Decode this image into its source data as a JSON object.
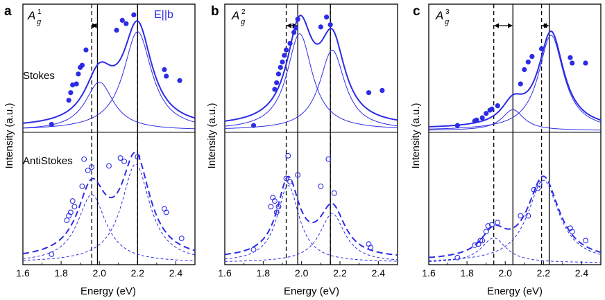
{
  "figure": {
    "ylabel": "Intensity (a.u.)",
    "xlabel": "Energy (eV)",
    "stokes_label": "Stokes",
    "antistokes_label": "AntiStokes",
    "polarization": "E||b"
  },
  "colors": {
    "curve": "#2c2ce6",
    "axis": "#000000"
  },
  "chart_data": [
    {
      "type": "scatter",
      "panel": "a",
      "mode": {
        "base": "A",
        "sub": "g",
        "sup": "1"
      },
      "xlim": [
        1.6,
        2.5
      ],
      "xticks": [
        "1.6",
        "1.8",
        "2.0",
        "2.2",
        "2.4"
      ],
      "xtick_values": [
        1.6,
        1.8,
        2.0,
        2.2,
        2.4
      ],
      "stokes": {
        "ylim": [
          0,
          1.12
        ],
        "points": [
          [
            1.75,
            0.06
          ],
          [
            1.84,
            0.28
          ],
          [
            1.85,
            0.35
          ],
          [
            1.86,
            0.42
          ],
          [
            1.88,
            0.43
          ],
          [
            1.89,
            0.52
          ],
          [
            1.9,
            0.58
          ],
          [
            1.91,
            0.6
          ],
          [
            1.93,
            0.74
          ],
          [
            2.09,
            0.92
          ],
          [
            2.12,
            1.01
          ],
          [
            2.14,
            0.98
          ],
          [
            2.18,
            1.06
          ],
          [
            2.34,
            0.56
          ],
          [
            2.35,
            0.5
          ],
          [
            2.42,
            0.46
          ]
        ],
        "peaks": [
          {
            "center": 2.0,
            "amp": 0.44,
            "width": 0.09
          },
          {
            "center": 2.2,
            "amp": 0.9,
            "width": 0.09
          }
        ],
        "baseline": 0.03
      },
      "antistokes": {
        "ylim": [
          0,
          1.12
        ],
        "points": [
          [
            1.75,
            0.08
          ],
          [
            1.83,
            0.38
          ],
          [
            1.84,
            0.42
          ],
          [
            1.85,
            0.45
          ],
          [
            1.86,
            0.55
          ],
          [
            1.87,
            0.5
          ],
          [
            1.91,
            0.68
          ],
          [
            1.92,
            0.92
          ],
          [
            1.94,
            0.82
          ],
          [
            1.96,
            0.85
          ],
          [
            2.05,
            0.86
          ],
          [
            2.11,
            0.93
          ],
          [
            2.13,
            0.9
          ],
          [
            2.2,
            0.94
          ],
          [
            2.34,
            0.48
          ],
          [
            2.35,
            0.45
          ],
          [
            2.43,
            0.22
          ]
        ],
        "peaks": [
          {
            "center": 1.96,
            "amp": 0.6,
            "width": 0.09
          },
          {
            "center": 2.19,
            "amp": 0.87,
            "width": 0.09
          }
        ],
        "baseline": 0.03
      },
      "vlines": [
        {
          "x": 1.96,
          "style": "dashed"
        },
        {
          "x": 1.99,
          "style": "solid"
        },
        {
          "x": 2.2,
          "style": "dashed"
        },
        {
          "x": 2.2,
          "style": "solid"
        }
      ],
      "arrows": [
        {
          "from": 1.96,
          "to": 1.99
        }
      ]
    },
    {
      "type": "scatter",
      "panel": "b",
      "mode": {
        "base": "A",
        "sub": "g",
        "sup": "2"
      },
      "xlim": [
        1.6,
        2.5
      ],
      "xticks": [
        "1.6",
        "1.8",
        "2.0",
        "2.2",
        "2.4"
      ],
      "xtick_values": [
        1.6,
        1.8,
        2.0,
        2.2,
        2.4
      ],
      "stokes": {
        "ylim": [
          0,
          1.12
        ],
        "points": [
          [
            1.75,
            0.05
          ],
          [
            1.86,
            0.38
          ],
          [
            1.87,
            0.44
          ],
          [
            1.88,
            0.52
          ],
          [
            1.89,
            0.58
          ],
          [
            1.9,
            0.63
          ],
          [
            1.91,
            0.69
          ],
          [
            1.92,
            0.74
          ],
          [
            1.94,
            0.8
          ],
          [
            1.96,
            0.9
          ],
          [
            1.97,
            0.94
          ],
          [
            1.98,
            1.02
          ],
          [
            2.1,
            0.95
          ],
          [
            2.13,
            1.04
          ],
          [
            2.15,
            0.97
          ],
          [
            2.35,
            0.35
          ],
          [
            2.42,
            0.37
          ]
        ],
        "peaks": [
          {
            "center": 1.99,
            "amp": 0.88,
            "width": 0.08
          },
          {
            "center": 2.16,
            "amp": 0.73,
            "width": 0.08
          }
        ],
        "baseline": 0.04
      },
      "antistokes": {
        "ylim": [
          0,
          1.12
        ],
        "points": [
          [
            1.75,
            0.12
          ],
          [
            1.84,
            0.5
          ],
          [
            1.85,
            0.58
          ],
          [
            1.86,
            0.55
          ],
          [
            1.87,
            0.45
          ],
          [
            1.88,
            0.5
          ],
          [
            1.92,
            0.75
          ],
          [
            1.93,
            0.95
          ],
          [
            1.94,
            0.72
          ],
          [
            1.98,
            0.78
          ],
          [
            2.1,
            0.68
          ],
          [
            2.14,
            0.92
          ],
          [
            2.17,
            0.62
          ],
          [
            2.35,
            0.17
          ],
          [
            2.36,
            0.14
          ]
        ],
        "peaks": [
          {
            "center": 1.93,
            "amp": 0.68,
            "width": 0.07
          },
          {
            "center": 2.16,
            "amp": 0.43,
            "width": 0.08
          }
        ],
        "baseline": 0.04
      },
      "vlines": [
        {
          "x": 1.92,
          "style": "dashed"
        },
        {
          "x": 1.98,
          "style": "solid"
        },
        {
          "x": 2.15,
          "style": "dashed"
        },
        {
          "x": 2.15,
          "style": "solid"
        }
      ],
      "arrows": [
        {
          "from": 1.92,
          "to": 1.98
        }
      ]
    },
    {
      "type": "scatter",
      "panel": "c",
      "mode": {
        "base": "A",
        "sub": "g",
        "sup": "3"
      },
      "xlim": [
        1.6,
        2.5
      ],
      "xticks": [
        "1.6",
        "1.8",
        "2.0",
        "2.2",
        "2.4"
      ],
      "xtick_values": [
        1.6,
        1.8,
        2.0,
        2.2,
        2.4
      ],
      "stokes": {
        "ylim": [
          0,
          1.12
        ],
        "points": [
          [
            1.75,
            0.05
          ],
          [
            1.84,
            0.09
          ],
          [
            1.85,
            0.1
          ],
          [
            1.88,
            0.12
          ],
          [
            1.9,
            0.16
          ],
          [
            1.92,
            0.19
          ],
          [
            1.93,
            0.2
          ],
          [
            1.96,
            0.23
          ],
          [
            2.08,
            0.43
          ],
          [
            2.1,
            0.56
          ],
          [
            2.12,
            0.63
          ],
          [
            2.14,
            0.68
          ],
          [
            2.19,
            0.75
          ],
          [
            2.34,
            0.67
          ],
          [
            2.35,
            0.62
          ],
          [
            2.42,
            0.62
          ]
        ],
        "peaks": [
          {
            "center": 2.04,
            "amp": 0.19,
            "width": 0.07
          },
          {
            "center": 2.24,
            "amp": 0.87,
            "width": 0.08
          }
        ],
        "baseline": 0.02
      },
      "antistokes": {
        "ylim": [
          0,
          1.12
        ],
        "points": [
          [
            1.75,
            0.05
          ],
          [
            1.84,
            0.16
          ],
          [
            1.86,
            0.17
          ],
          [
            1.87,
            0.2
          ],
          [
            1.88,
            0.2
          ],
          [
            1.9,
            0.28
          ],
          [
            1.91,
            0.33
          ],
          [
            1.93,
            0.34
          ],
          [
            1.96,
            0.36
          ],
          [
            2.08,
            0.42
          ],
          [
            2.12,
            0.42
          ],
          [
            2.15,
            0.65
          ],
          [
            2.17,
            0.66
          ],
          [
            2.18,
            0.7
          ],
          [
            2.34,
            0.31
          ],
          [
            2.35,
            0.28
          ],
          [
            2.42,
            0.2
          ]
        ],
        "peaks": [
          {
            "center": 1.94,
            "amp": 0.22,
            "width": 0.08
          },
          {
            "center": 2.2,
            "amp": 0.73,
            "width": 0.1
          }
        ],
        "baseline": 0.02
      },
      "vlines": [
        {
          "x": 1.94,
          "style": "dashed"
        },
        {
          "x": 2.04,
          "style": "solid"
        },
        {
          "x": 2.19,
          "style": "dashed"
        },
        {
          "x": 2.23,
          "style": "solid"
        }
      ],
      "arrows": [
        {
          "from": 1.94,
          "to": 2.04
        },
        {
          "from": 2.19,
          "to": 2.23
        }
      ]
    }
  ]
}
